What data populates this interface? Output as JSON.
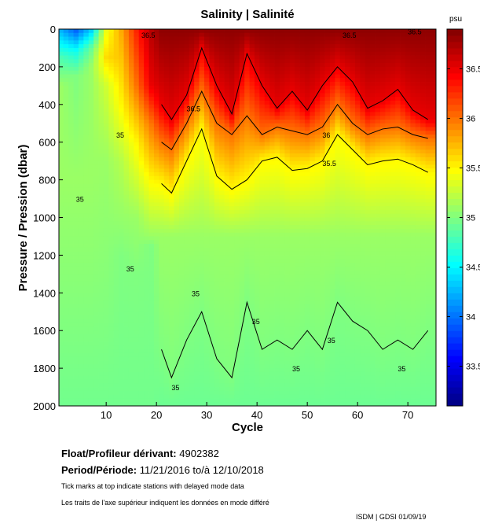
{
  "chart_data": {
    "type": "heatmap",
    "title": "Salinity | Salinité",
    "xlabel": "Cycle",
    "ylabel": "Pressure / Pression (dbar)",
    "xlim": [
      0.6,
      75.6
    ],
    "ylim": [
      0,
      2000
    ],
    "xticks": [
      10,
      20,
      30,
      40,
      50,
      60,
      70
    ],
    "yticks": [
      0,
      200,
      400,
      600,
      800,
      1000,
      1200,
      1400,
      1600,
      1800,
      2000
    ],
    "colorbar": {
      "unit": "psu",
      "range": [
        33.1,
        36.9
      ],
      "ticks": [
        "33.5",
        "34",
        "34.5",
        "35",
        "35.5",
        "36",
        "36.5"
      ],
      "colormap": "jet"
    },
    "early_profiles": [
      {
        "cycle": 1,
        "p": [
          0,
          150,
          300,
          800,
          2000
        ],
        "s": [
          34.2,
          34.8,
          35.1,
          35.1,
          34.95
        ]
      },
      {
        "cycle": 4,
        "p": [
          0,
          120,
          250,
          800,
          2000
        ],
        "s": [
          33.9,
          34.6,
          35.0,
          35.1,
          34.95
        ]
      },
      {
        "cycle": 7,
        "p": [
          0,
          100,
          200,
          800,
          2000
        ],
        "s": [
          34.3,
          34.9,
          35.1,
          35.1,
          34.95
        ]
      },
      {
        "cycle": 10,
        "p": [
          0,
          150,
          300,
          700,
          1100,
          2000
        ],
        "s": [
          35.4,
          35.6,
          35.3,
          35.1,
          35.05,
          34.95
        ]
      },
      {
        "cycle": 13,
        "p": [
          0,
          150,
          400,
          700,
          1200,
          2000
        ],
        "s": [
          35.8,
          35.7,
          35.5,
          35.2,
          35.0,
          34.95
        ]
      },
      {
        "cycle": 16,
        "p": [
          0,
          300,
          600,
          1000,
          1300,
          2000
        ],
        "s": [
          36.3,
          36.0,
          35.5,
          35.1,
          35.0,
          34.95
        ]
      },
      {
        "cycle": 19,
        "p": [
          0,
          300,
          500,
          800,
          1100,
          1150,
          2000
        ],
        "s": [
          36.7,
          36.5,
          36.0,
          35.5,
          35.1,
          35.0,
          34.95
        ]
      }
    ],
    "contour_cycles": [
      21,
      23,
      26,
      29,
      32,
      35,
      38,
      41,
      44,
      47,
      50,
      53,
      56,
      59,
      62,
      65,
      68,
      71,
      74
    ],
    "contour_depths": {
      "36.5": [
        400,
        480,
        350,
        100,
        300,
        450,
        130,
        300,
        420,
        330,
        430,
        300,
        200,
        280,
        420,
        380,
        320,
        430,
        480
      ],
      "36": [
        600,
        640,
        500,
        330,
        500,
        560,
        460,
        560,
        520,
        540,
        560,
        520,
        400,
        500,
        560,
        530,
        520,
        560,
        580
      ],
      "35.5": [
        820,
        870,
        700,
        530,
        780,
        850,
        800,
        700,
        680,
        750,
        740,
        700,
        560,
        640,
        720,
        700,
        690,
        720,
        760
      ],
      "35": [
        1700,
        1850,
        1650,
        1500,
        1750,
        1850,
        1450,
        1700,
        1650,
        1700,
        1600,
        1700,
        1450,
        1550,
        1600,
        1700,
        1650,
        1700,
        1600
      ]
    },
    "surface_salinity": 36.85,
    "contour_labels": [
      {
        "text": "36.5",
        "cycle": 26,
        "p": 420
      },
      {
        "text": "36",
        "cycle": 53,
        "p": 560
      },
      {
        "text": "35.5",
        "cycle": 53,
        "p": 710
      },
      {
        "text": "36.5",
        "cycle": 17,
        "p": 30
      },
      {
        "text": "36.5",
        "cycle": 57,
        "p": 30
      },
      {
        "text": "36.5",
        "cycle": 70,
        "p": 10
      },
      {
        "text": "35",
        "cycle": 12,
        "p": 560
      },
      {
        "text": "35",
        "cycle": 4,
        "p": 900
      },
      {
        "text": "35",
        "cycle": 14,
        "p": 1270
      },
      {
        "text": "35",
        "cycle": 23,
        "p": 1900
      },
      {
        "text": "35",
        "cycle": 27,
        "p": 1400
      },
      {
        "text": "35",
        "cycle": 39,
        "p": 1550
      },
      {
        "text": "35",
        "cycle": 47,
        "p": 1800
      },
      {
        "text": "35",
        "cycle": 54,
        "p": 1650
      },
      {
        "text": "35",
        "cycle": 68,
        "p": 1800
      }
    ]
  },
  "info": {
    "float_label": "Float/Profileur dérivant:",
    "float_id": "4902382",
    "period_label": "Period/Période:",
    "period_value": "11/21/2016  to/à  12/10/2018",
    "note_en": "Tick marks at top indicate stations with delayed mode data",
    "note_fr": "Les traits de l'axe supérieur indiquent les données en mode différé",
    "credit": "ISDM | GDSI  01/09/19"
  }
}
